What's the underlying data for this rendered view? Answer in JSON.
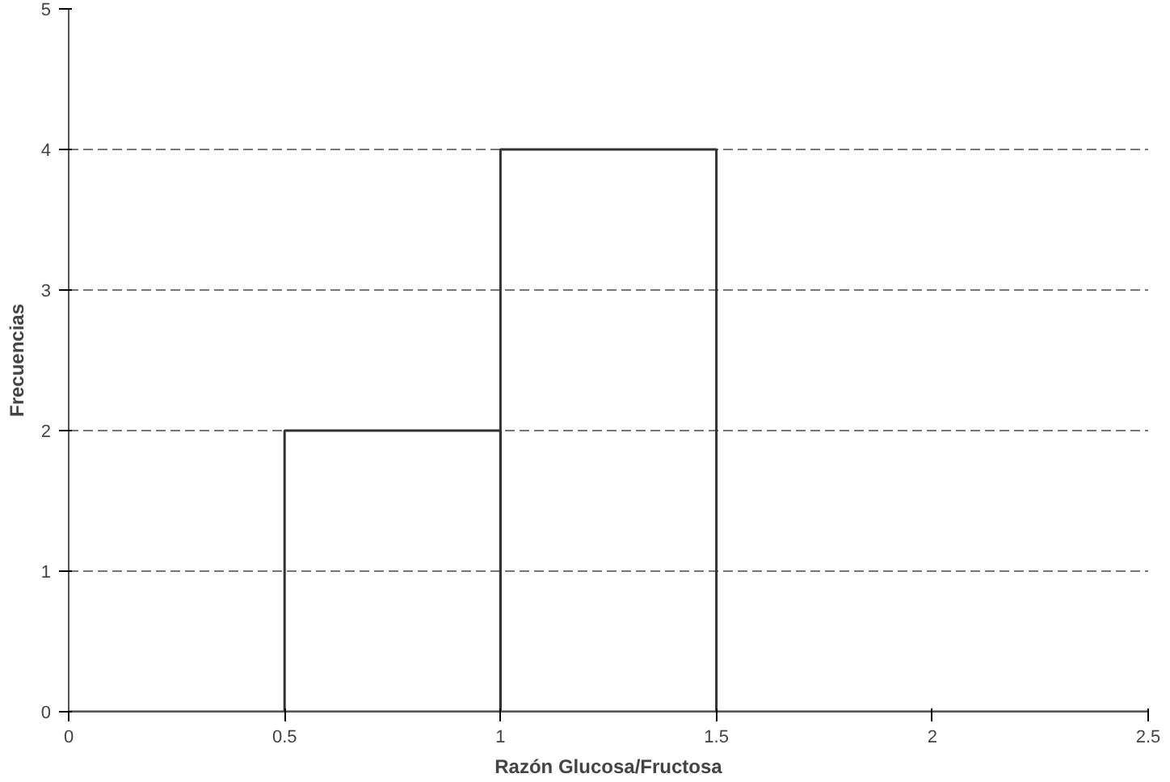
{
  "chart_data": {
    "type": "histogram",
    "xlabel": "Razón Glucosa/Fructosa",
    "ylabel": "Frecuencias",
    "bins": [
      0,
      0.5,
      1,
      1.5,
      2,
      2.5
    ],
    "values": [
      0,
      2,
      4,
      0,
      0
    ],
    "color": "#333333",
    "xlim": [
      0,
      2.5
    ],
    "ylim": [
      0,
      5
    ],
    "xticks": [
      0,
      0.5,
      1,
      1.5,
      2,
      2.5
    ],
    "yticks": [
      0,
      1,
      2,
      3,
      4,
      5
    ],
    "grid": "y"
  }
}
